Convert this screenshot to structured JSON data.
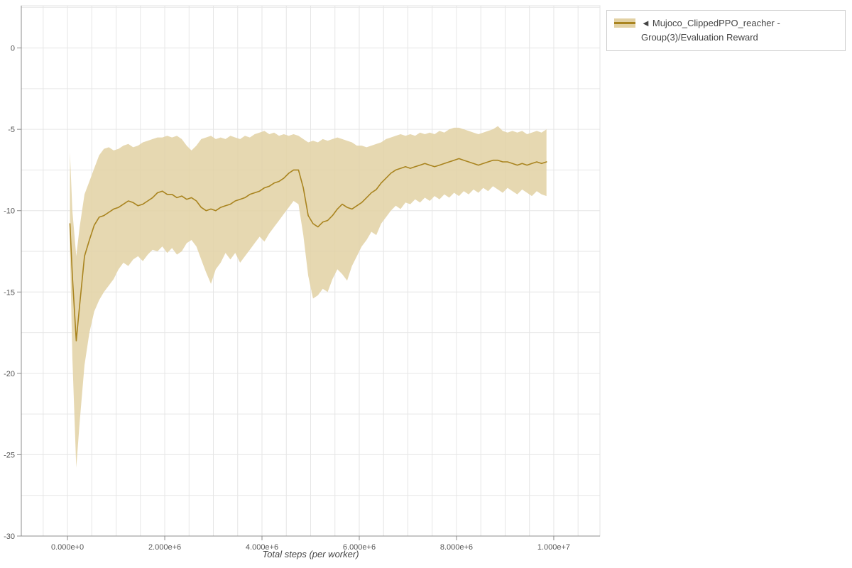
{
  "legend": {
    "collapse_icon": "◄",
    "label": "Mujoco_ClippedPPO_reacher - Group(3)/Evaluation Reward",
    "line_color": "#a9841f",
    "band_color": "#e2d1a3"
  },
  "chart_data": {
    "type": "line",
    "title": "",
    "xlabel": "Total steps (per worker)",
    "ylabel": "",
    "x_range": [
      -950000,
      10950000
    ],
    "y_range": [
      -30,
      2.6
    ],
    "x_ticks": [
      0,
      2000000,
      4000000,
      6000000,
      8000000,
      10000000
    ],
    "x_tick_labels": [
      "0.000e+0",
      "2.000e+6",
      "4.000e+6",
      "6.000e+6",
      "8.000e+6",
      "1.000e+7"
    ],
    "y_ticks": [
      0,
      -5,
      -10,
      -15,
      -20,
      -25,
      -30
    ],
    "y_tick_labels": [
      "0",
      "-5",
      "-10",
      "-15",
      "-20",
      "-25",
      "-30"
    ],
    "grid": {
      "on": true,
      "x_minor_step": 500000,
      "y_minor_step": 2.5,
      "color": "#e6e6e6"
    },
    "legend_position": "top-right-outside",
    "colors": {
      "line": "#a9841f",
      "band": "#e2d1a3",
      "grid": "#e6e6e6",
      "frame": "#e3e3e3",
      "axis": "#8c8c8c",
      "tick_label": "#555555",
      "axis_label": "#444444"
    },
    "series": [
      {
        "name": "Mujoco_ClippedPPO_reacher - Group(3)/Evaluation Reward",
        "line_color": "#a9841f",
        "band_color": "#e2d1a3",
        "x": [
          50000,
          100000,
          180000,
          250000,
          350000,
          450000,
          550000,
          650000,
          750000,
          850000,
          950000,
          1050000,
          1150000,
          1250000,
          1350000,
          1450000,
          1550000,
          1650000,
          1750000,
          1850000,
          1950000,
          2050000,
          2150000,
          2250000,
          2350000,
          2450000,
          2550000,
          2650000,
          2750000,
          2850000,
          2950000,
          3050000,
          3150000,
          3250000,
          3350000,
          3450000,
          3550000,
          3650000,
          3750000,
          3850000,
          3950000,
          4050000,
          4150000,
          4250000,
          4350000,
          4450000,
          4550000,
          4650000,
          4750000,
          4850000,
          4950000,
          5050000,
          5150000,
          5250000,
          5350000,
          5450000,
          5550000,
          5650000,
          5750000,
          5850000,
          5950000,
          6050000,
          6150000,
          6250000,
          6350000,
          6450000,
          6550000,
          6650000,
          6750000,
          6850000,
          6950000,
          7050000,
          7150000,
          7250000,
          7350000,
          7450000,
          7550000,
          7650000,
          7750000,
          7850000,
          7950000,
          8050000,
          8150000,
          8250000,
          8350000,
          8450000,
          8550000,
          8650000,
          8750000,
          8850000,
          8950000,
          9050000,
          9150000,
          9250000,
          9350000,
          9450000,
          9550000,
          9650000,
          9750000,
          9850000
        ],
        "mean": [
          -10.8,
          -14.0,
          -18.0,
          -15.8,
          -12.8,
          -11.8,
          -10.9,
          -10.4,
          -10.3,
          -10.1,
          -9.9,
          -9.8,
          -9.6,
          -9.4,
          -9.5,
          -9.7,
          -9.6,
          -9.4,
          -9.2,
          -8.9,
          -8.8,
          -9.0,
          -9.0,
          -9.2,
          -9.1,
          -9.3,
          -9.2,
          -9.4,
          -9.8,
          -10.0,
          -9.9,
          -10.0,
          -9.8,
          -9.7,
          -9.6,
          -9.4,
          -9.3,
          -9.2,
          -9.0,
          -8.9,
          -8.8,
          -8.6,
          -8.5,
          -8.3,
          -8.2,
          -8.0,
          -7.7,
          -7.5,
          -7.5,
          -8.6,
          -10.3,
          -10.8,
          -11.0,
          -10.7,
          -10.6,
          -10.3,
          -9.9,
          -9.6,
          -9.8,
          -9.9,
          -9.7,
          -9.5,
          -9.2,
          -8.9,
          -8.7,
          -8.3,
          -8.0,
          -7.7,
          -7.5,
          -7.4,
          -7.3,
          -7.4,
          -7.3,
          -7.2,
          -7.1,
          -7.2,
          -7.3,
          -7.2,
          -7.1,
          -7.0,
          -6.9,
          -6.8,
          -6.9,
          -7.0,
          -7.1,
          -7.2,
          -7.1,
          -7.0,
          -6.9,
          -6.9,
          -7.0,
          -7.0,
          -7.1,
          -7.2,
          -7.1,
          -7.2,
          -7.1,
          -7.0,
          -7.1,
          -7.0
        ],
        "lower": [
          -12.3,
          -19.0,
          -25.8,
          -23.0,
          -19.5,
          -17.5,
          -16.2,
          -15.5,
          -15.0,
          -14.6,
          -14.2,
          -13.6,
          -13.2,
          -13.4,
          -13.0,
          -12.8,
          -13.1,
          -12.7,
          -12.4,
          -12.5,
          -12.2,
          -12.6,
          -12.3,
          -12.7,
          -12.5,
          -12.0,
          -11.8,
          -12.2,
          -13.0,
          -13.8,
          -14.5,
          -13.6,
          -13.2,
          -12.6,
          -13.0,
          -12.6,
          -13.2,
          -12.8,
          -12.4,
          -12.0,
          -11.6,
          -11.9,
          -11.4,
          -11.0,
          -10.6,
          -10.2,
          -9.8,
          -9.4,
          -9.6,
          -11.5,
          -14.0,
          -15.4,
          -15.2,
          -14.8,
          -15.0,
          -14.2,
          -13.6,
          -13.9,
          -14.3,
          -13.4,
          -12.8,
          -12.2,
          -11.8,
          -11.3,
          -11.5,
          -10.8,
          -10.4,
          -10.0,
          -9.7,
          -9.9,
          -9.5,
          -9.6,
          -9.3,
          -9.5,
          -9.2,
          -9.4,
          -9.1,
          -9.3,
          -9.0,
          -9.2,
          -8.9,
          -9.1,
          -8.8,
          -9.0,
          -8.7,
          -8.9,
          -8.6,
          -8.8,
          -8.5,
          -8.7,
          -8.9,
          -8.6,
          -8.8,
          -9.0,
          -8.7,
          -8.9,
          -9.1,
          -8.8,
          -9.0,
          -9.1
        ],
        "upper": [
          -6.4,
          -10.0,
          -12.8,
          -11.0,
          -9.0,
          -8.2,
          -7.4,
          -6.6,
          -6.2,
          -6.1,
          -6.3,
          -6.2,
          -6.0,
          -5.9,
          -6.1,
          -6.0,
          -5.8,
          -5.7,
          -5.6,
          -5.5,
          -5.5,
          -5.4,
          -5.5,
          -5.4,
          -5.6,
          -6.0,
          -6.3,
          -6.0,
          -5.6,
          -5.5,
          -5.4,
          -5.6,
          -5.5,
          -5.6,
          -5.4,
          -5.5,
          -5.6,
          -5.4,
          -5.5,
          -5.3,
          -5.2,
          -5.1,
          -5.3,
          -5.2,
          -5.4,
          -5.3,
          -5.4,
          -5.3,
          -5.4,
          -5.6,
          -5.8,
          -5.7,
          -5.8,
          -5.6,
          -5.7,
          -5.6,
          -5.5,
          -5.6,
          -5.7,
          -5.8,
          -6.0,
          -6.0,
          -6.1,
          -6.0,
          -5.9,
          -5.8,
          -5.6,
          -5.5,
          -5.4,
          -5.3,
          -5.4,
          -5.3,
          -5.4,
          -5.2,
          -5.3,
          -5.2,
          -5.3,
          -5.1,
          -5.2,
          -5.0,
          -4.9,
          -4.9,
          -5.0,
          -5.1,
          -5.2,
          -5.3,
          -5.2,
          -5.1,
          -5.0,
          -4.8,
          -5.1,
          -5.2,
          -5.1,
          -5.2,
          -5.1,
          -5.3,
          -5.2,
          -5.1,
          -5.2,
          -5.0
        ]
      }
    ]
  }
}
